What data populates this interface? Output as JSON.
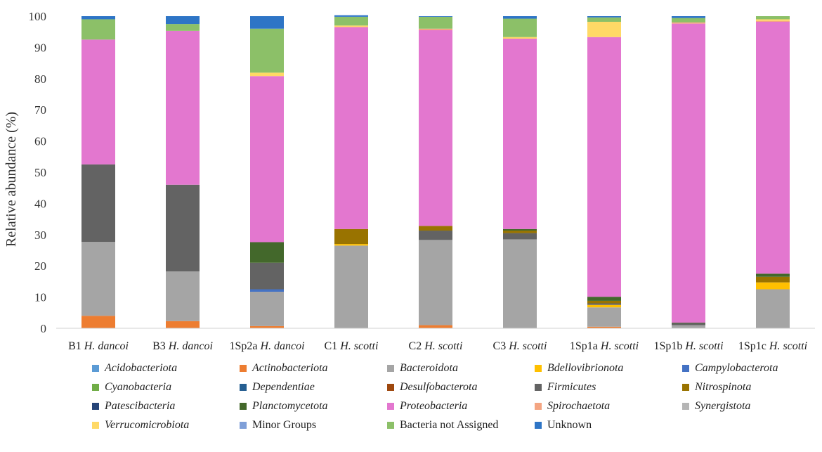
{
  "chart_data": {
    "type": "stacked-bar",
    "title": "",
    "xlabel": "",
    "ylabel": "Relative abundance (%)",
    "ylim": [
      0,
      100
    ],
    "yticks": [
      0,
      10,
      20,
      30,
      40,
      50,
      60,
      70,
      80,
      90,
      100
    ],
    "grid": false,
    "legend_position": "bottom",
    "categories": [
      {
        "prefix": "B1 ",
        "species": "H. dancoi"
      },
      {
        "prefix": "B3 ",
        "species": "H. dancoi"
      },
      {
        "prefix": "1Sp2a ",
        "species": "H. dancoi"
      },
      {
        "prefix": "C1 ",
        "species": "H. scotti"
      },
      {
        "prefix": "C2 ",
        "species": "H. scotti"
      },
      {
        "prefix": "C3 ",
        "species": "H. scotti"
      },
      {
        "prefix": "1Sp1a ",
        "species": "H. scotti"
      },
      {
        "prefix": "1Sp1b ",
        "species": "H. scotti"
      },
      {
        "prefix": "1Sp1c ",
        "species": "H. scotti"
      }
    ],
    "series": [
      {
        "name": "Acidobacteriota",
        "italic": true,
        "color": "#5b9bd5",
        "values": [
          0,
          0,
          0,
          0,
          0,
          0,
          0,
          0,
          0
        ]
      },
      {
        "name": "Actinobacteriota",
        "italic": true,
        "color": "#ed7d31",
        "values": [
          4,
          2.3,
          0.7,
          0,
          1,
          0,
          0.5,
          0,
          0
        ]
      },
      {
        "name": "Bacteroidota",
        "italic": true,
        "color": "#a5a5a5",
        "values": [
          23.7,
          15.9,
          11,
          26.5,
          27.3,
          28.5,
          6.2,
          1,
          12.5
        ]
      },
      {
        "name": "Bdellovibrionota",
        "italic": true,
        "color": "#ffc000",
        "values": [
          0,
          0,
          0,
          0.5,
          0,
          0,
          0.8,
          0,
          2.2
        ]
      },
      {
        "name": "Campylobacterota",
        "italic": true,
        "color": "#4472c4",
        "values": [
          0,
          0,
          0.8,
          0,
          0,
          0,
          0,
          0,
          0
        ]
      },
      {
        "name": "Cyanobacteria",
        "italic": true,
        "color": "#70ad47",
        "values": [
          0,
          0,
          0,
          0,
          0,
          0,
          0,
          0,
          0
        ]
      },
      {
        "name": "Dependentiae",
        "italic": true,
        "color": "#255e91",
        "values": [
          0,
          0,
          0,
          0,
          0,
          0,
          0,
          0,
          0
        ]
      },
      {
        "name": "Desulfobacterota",
        "italic": true,
        "color": "#9e480e",
        "values": [
          0,
          0,
          0,
          0,
          0,
          0,
          0,
          0,
          0
        ]
      },
      {
        "name": "Firmicutes",
        "italic": true,
        "color": "#636363",
        "values": [
          24.8,
          27.8,
          8.5,
          0,
          3,
          2,
          0.5,
          0.6,
          0
        ]
      },
      {
        "name": "Nitrospinota",
        "italic": true,
        "color": "#997300",
        "values": [
          0,
          0,
          0,
          4.8,
          1.5,
          0.8,
          0.8,
          0,
          1.8
        ]
      },
      {
        "name": "Patescibacteria",
        "italic": true,
        "color": "#264478",
        "values": [
          0,
          0,
          0,
          0,
          0,
          0,
          0,
          0,
          0
        ]
      },
      {
        "name": "Planctomycetota",
        "italic": true,
        "color": "#43682b",
        "values": [
          0,
          0,
          6.6,
          0,
          0,
          0.5,
          1.3,
          0.2,
          1
        ]
      },
      {
        "name": "Proteobacteria",
        "italic": true,
        "color": "#e377cf",
        "values": [
          40,
          49.3,
          53.2,
          64.7,
          62.7,
          61,
          83.2,
          95.8,
          80.7
        ]
      },
      {
        "name": "Spirochaetota",
        "italic": true,
        "color": "#f4a582",
        "values": [
          0,
          0,
          0,
          0,
          0.5,
          0,
          0,
          0.4,
          0.3
        ]
      },
      {
        "name": "Synergistota",
        "italic": true,
        "color": "#b5b5b5",
        "values": [
          0,
          0,
          0,
          0,
          0,
          0,
          0,
          0,
          0
        ]
      },
      {
        "name": "Verrucomicrobiota",
        "italic": true,
        "color": "#ffd966",
        "values": [
          0,
          0,
          1.1,
          0.5,
          0,
          0.5,
          4.9,
          0,
          0.5
        ]
      },
      {
        "name": "Minor Groups",
        "italic": false,
        "color": "#7f9fd8",
        "values": [
          0,
          0,
          0,
          0,
          0,
          0,
          0,
          0,
          0
        ]
      },
      {
        "name": "Bacteria not Assigned",
        "italic": false,
        "color": "#8cc068",
        "values": [
          6.5,
          2.2,
          14.1,
          2.8,
          3.8,
          5.9,
          1.4,
          1.4,
          1
        ]
      },
      {
        "name": "Unknown",
        "italic": false,
        "color": "#2e75c6",
        "values": [
          1,
          2.5,
          4,
          0.5,
          0.2,
          0.8,
          0.4,
          0.6,
          0
        ]
      }
    ]
  }
}
